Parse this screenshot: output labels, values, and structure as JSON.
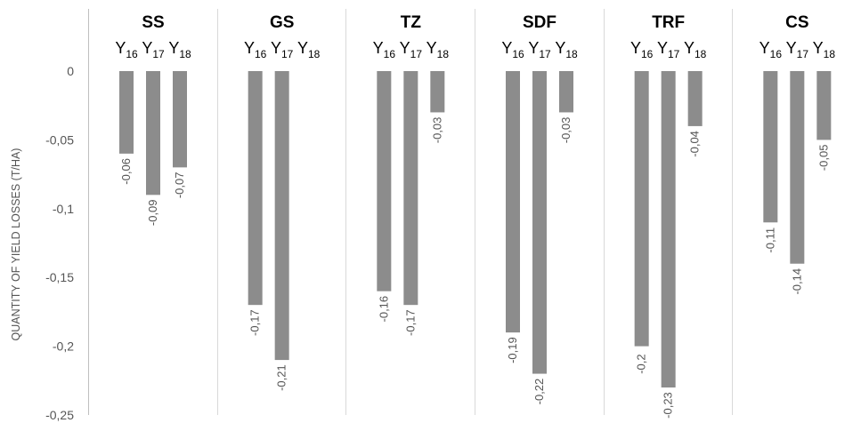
{
  "chart_data": {
    "type": "bar",
    "ylabel": "QUANTITY OF YIELD LOSSES (T/HA)",
    "ylim": [
      -0.25,
      0
    ],
    "yticks": [
      0,
      -0.05,
      -0.1,
      -0.15,
      -0.2,
      -0.25
    ],
    "ytick_labels": [
      "0",
      "-0,05",
      "-0,1",
      "-0,15",
      "-0,2",
      "-0,25"
    ],
    "grid": false,
    "bar_color": "#8c8c8c",
    "year_labels": [
      {
        "base": "Y",
        "sub": "16"
      },
      {
        "base": "Y",
        "sub": "17"
      },
      {
        "base": "Y",
        "sub": "18"
      }
    ],
    "groups": [
      {
        "name": "SS",
        "values": [
          -0.06,
          -0.09,
          -0.07
        ],
        "labels": [
          "-0,06",
          "-0,09",
          "-0,07"
        ]
      },
      {
        "name": "GS",
        "values": [
          -0.17,
          -0.21,
          null
        ],
        "labels": [
          "-0,17",
          "-0,21",
          ""
        ]
      },
      {
        "name": "TZ",
        "values": [
          -0.16,
          -0.17,
          -0.03
        ],
        "labels": [
          "-0,16",
          "-0,17",
          "-0,03"
        ]
      },
      {
        "name": "SDF",
        "values": [
          -0.19,
          -0.22,
          -0.03
        ],
        "labels": [
          "-0,19",
          "-0,22",
          "-0,03"
        ]
      },
      {
        "name": "TRF",
        "values": [
          -0.2,
          -0.23,
          -0.04
        ],
        "labels": [
          "-0,2",
          "-0,23",
          "-0,04"
        ]
      },
      {
        "name": "CS",
        "values": [
          -0.11,
          -0.14,
          -0.05
        ],
        "labels": [
          "-0,11",
          "-0,14",
          "-0,05"
        ]
      }
    ]
  }
}
